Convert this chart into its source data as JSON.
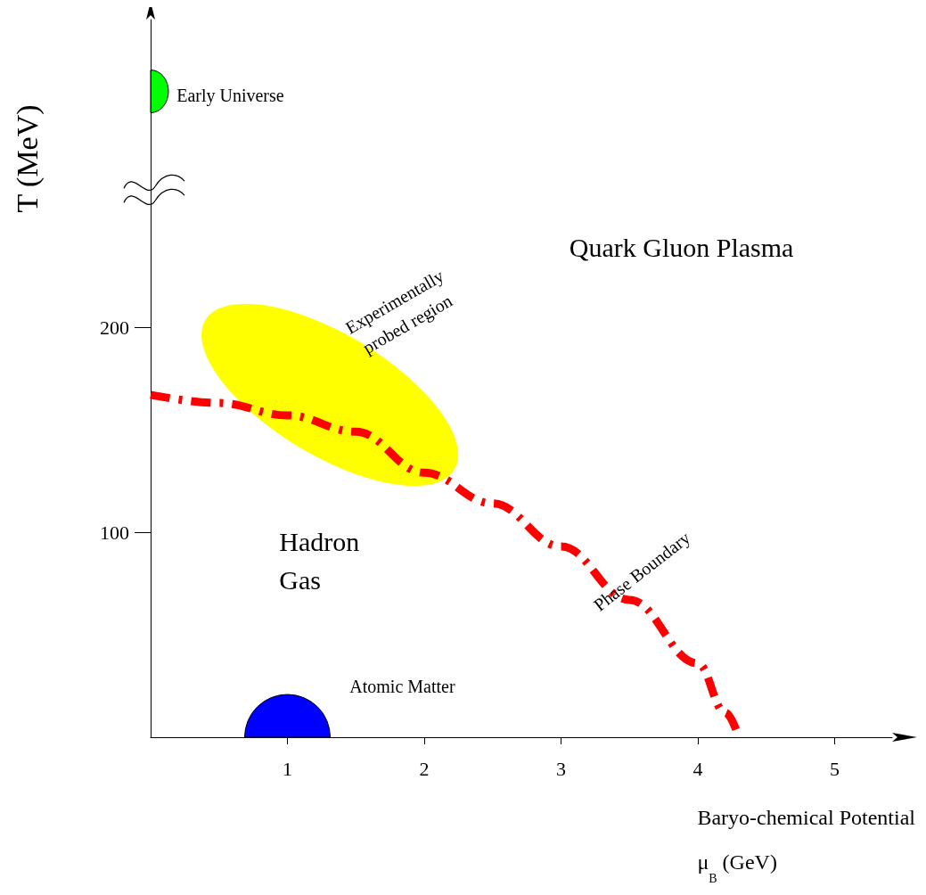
{
  "chart_data": {
    "type": "line",
    "xlabel": "Baryo-chemical Potential\nμ$_{B}$ (GeV)",
    "ylabel": "T (MeV)",
    "series": [
      {
        "color": "#ff0000",
        "x": [
          0,
          0.5,
          1,
          1.5,
          2,
          2.5,
          3,
          3.5,
          4,
          4.2,
          4.3
        ],
        "values": [
          167,
          163,
          157,
          149,
          129,
          114,
          93,
          67,
          36,
          12,
          0
        ]
      }
    ],
    "xlim": [
      0,
      5.42
    ],
    "ylim": [
      0,
      350
    ],
    "xticks": [
      1,
      2,
      3,
      4,
      5
    ],
    "yticks": [
      100,
      200
    ],
    "annotations": [
      "Quark Gluon Plasma",
      "Hadron\nGas",
      "Experimentally\nprobed region",
      "Phase Boundary",
      "Atomic Matter",
      "Early Universe"
    ],
    "grid": false,
    "marker": "none",
    "line_style": "dashed"
  }
}
